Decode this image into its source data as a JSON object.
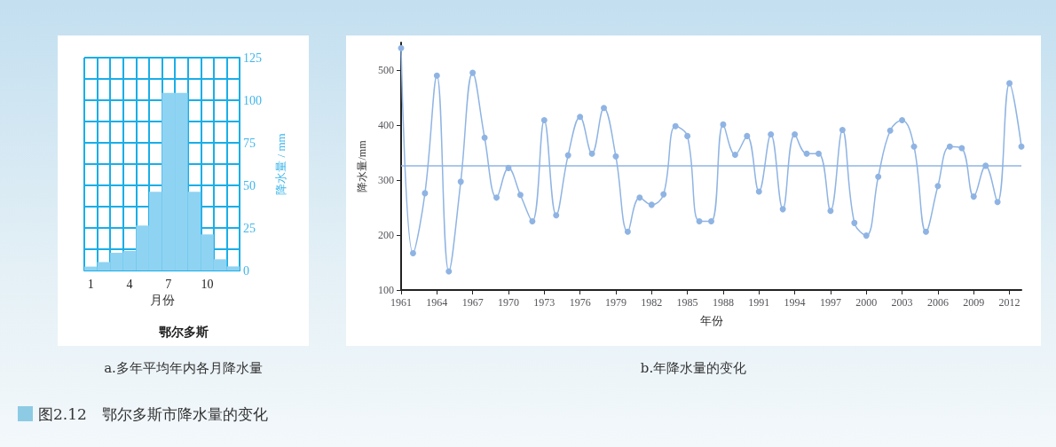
{
  "chart_data": [
    {
      "type": "bar",
      "title": "鄂尔多斯",
      "xlabel": "月份",
      "ylabel": "降水量 / mm",
      "annotations": [
        "a.多年平均年内各月降水量"
      ],
      "categories": [
        "1",
        null,
        null,
        "4",
        null,
        null,
        "7",
        null,
        null,
        "10",
        null,
        null
      ],
      "values": [
        2.3,
        4.9,
        10.4,
        11.5,
        26.4,
        46.2,
        104.3,
        104.3,
        46.2,
        21.2,
        6.6,
        2.4
      ],
      "color": "#8fd3f2",
      "ylim": [
        0,
        125
      ],
      "yticks": [
        0,
        {
          "value": 12.5,
          "label": null
        },
        25,
        {
          "value": 37.5,
          "label": null
        },
        50,
        {
          "value": 62.5,
          "label": null
        },
        75,
        {
          "value": 87.5,
          "label": null
        },
        100,
        {
          "value": 112.5,
          "label": null
        },
        125
      ],
      "grid": true
    },
    {
      "type": "line",
      "xlabel": "年份",
      "ylabel": "降水量/mm",
      "annotations": [
        "b.年降水量的变化",
        "图2.12　鄂尔多斯市降水量的变化"
      ],
      "x": [
        1961,
        1962,
        1963,
        1964,
        1965,
        1966,
        1967,
        1968,
        1969,
        1970,
        1971,
        1972,
        1973,
        1974,
        1975,
        1976,
        1977,
        1978,
        1979,
        1980,
        1981,
        1982,
        1983,
        1984,
        1985,
        1986,
        1987,
        1988,
        1989,
        1990,
        1991,
        1992,
        1993,
        1994,
        1995,
        1996,
        1997,
        1998,
        1999,
        2000,
        2001,
        2002,
        2003,
        2004,
        2005,
        2006,
        2007,
        2008,
        2009,
        2010,
        2011,
        2012,
        2013
      ],
      "values": [
        540,
        167,
        276,
        490,
        134,
        297,
        495,
        377,
        268,
        322,
        273,
        225,
        409,
        236,
        345,
        415,
        348,
        431,
        343,
        206,
        268,
        255,
        274,
        398,
        380,
        225,
        225,
        401,
        346,
        380,
        279,
        383,
        247,
        383,
        348,
        348,
        244,
        391,
        222,
        199,
        306,
        390,
        409,
        361,
        206,
        289,
        361,
        358,
        270,
        326,
        260,
        476,
        361
      ],
      "color": "#8fb4e3",
      "marker": "circle",
      "line_style": "solid",
      "xlim": [
        1961,
        2013
      ],
      "xticks": [
        1961,
        1964,
        1967,
        1970,
        1973,
        1976,
        1979,
        1982,
        1985,
        1988,
        1991,
        1994,
        1997,
        2000,
        2003,
        2006,
        2009,
        2012
      ],
      "ylim": [
        100,
        550
      ],
      "yticks": [
        100,
        200,
        300,
        400,
        500
      ],
      "ref_lines": [
        {
          "axis": "y",
          "value": 326,
          "color": "#8fb4e3"
        }
      ]
    }
  ]
}
